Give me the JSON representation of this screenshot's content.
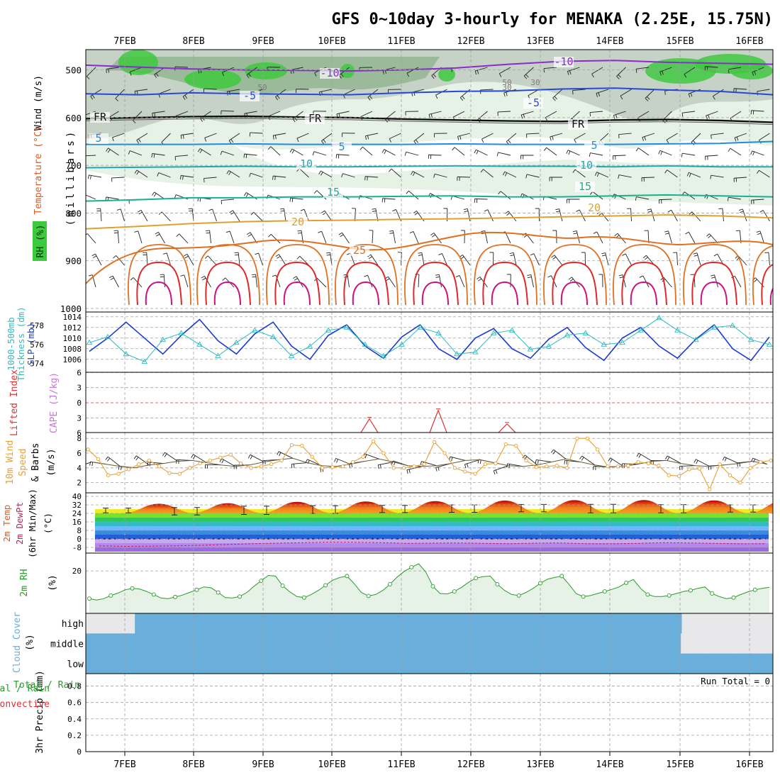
{
  "title": "GFS 0~10day 3-hourly for MENAKA (2.25E, 15.75N)",
  "run_total": "Run Total = 0",
  "dates": [
    "7FEB",
    "8FEB",
    "9FEB",
    "10FEB",
    "11FEB",
    "12FEB",
    "13FEB",
    "14FEB",
    "15FEB",
    "16FEB"
  ],
  "panel_labels": {
    "upper_left": [
      "Wind (m/s)",
      "Temperature (°C)",
      "RH (%)"
    ],
    "upper_right": "(millibars)",
    "pressure": [
      "Thickness (dm)",
      "1000-500mb",
      "SLP (mb)"
    ],
    "stability": [
      "Lifted Index",
      "CAPE (J/kg)"
    ],
    "wind10": [
      "10m Wind",
      "Speed",
      "& Barbs",
      "(m/s)"
    ],
    "temp2m": [
      "2m Temp",
      "2m DewPt",
      "(6hr Min/Max)",
      "(°C)"
    ],
    "rh2m": [
      "2m RH",
      "(%)"
    ],
    "cloud": [
      "Cloud Cover",
      "(%)"
    ],
    "precip": [
      "Total / Rain",
      "Convective",
      "3hr Precip (mm)"
    ]
  },
  "cloud_levels": [
    "high",
    "middle",
    "low"
  ],
  "colors": {
    "grid": "#a0a0a0",
    "rh_green": "#3ec93e",
    "rh_light": "#e6f2e6",
    "rh_gray": "#b8c4b8",
    "slp": "#1a3ccf",
    "thickness": "#2bbcc0",
    "cape": "#c874d8",
    "li": "#e03030",
    "wind10": "#e8a030",
    "rh2m": "#2a9a2a",
    "cloud": "#6aaedb"
  },
  "chart_data": [
    {
      "type": "line",
      "panel": "upper-air cross-section",
      "y_axis": "pressure (millibars)",
      "ylim": [
        1000,
        450
      ],
      "yticks": [
        500,
        600,
        700,
        800,
        900,
        1000
      ],
      "contour_labels": {
        "wind": [
          "-10",
          "-5",
          "FR",
          "5",
          "10",
          "15",
          "20",
          "25"
        ],
        "rh": [
          "50",
          "30"
        ]
      },
      "isotherms": [
        {
          "label": "-10",
          "color": "#8a2bd0",
          "p": [
            490,
            494,
            498,
            500,
            501,
            502,
            500,
            496,
            488,
            482,
            480,
            484,
            486,
            488
          ]
        },
        {
          "label": "-5",
          "color": "#2848d8",
          "p": [
            550,
            552,
            548,
            550,
            551,
            552,
            548,
            545,
            544,
            540,
            538,
            542,
            545,
            552
          ]
        },
        {
          "label": "FR",
          "color": "#101010",
          "p": [
            602,
            600,
            598,
            597,
            599,
            600,
            603,
            605,
            607,
            608,
            605,
            604,
            606,
            610
          ]
        },
        {
          "label": "5",
          "color": "#1e8ce0",
          "p": [
            656,
            656,
            656,
            655,
            656,
            656,
            656,
            655,
            656,
            656,
            656,
            655,
            654,
            650
          ]
        },
        {
          "label": "10",
          "color": "#20a8b0",
          "p": [
            705,
            704,
            703,
            702,
            703,
            703,
            702,
            701,
            702,
            702,
            703,
            701,
            703,
            703
          ]
        },
        {
          "label": "15",
          "color": "#18b090",
          "p": [
            775,
            772,
            768,
            768,
            766,
            766,
            765,
            764,
            766,
            766,
            764,
            762,
            764,
            766
          ]
        },
        {
          "label": "20",
          "color": "#e0a030",
          "p": [
            833,
            828,
            822,
            818,
            816,
            815,
            813,
            812,
            810,
            808,
            806,
            804,
            806,
            810
          ]
        }
      ]
    },
    {
      "type": "line",
      "panel": "SLP and 1000-500mb thickness",
      "series": [
        {
          "name": "SLP (mb)",
          "axis": "right",
          "ylim": [
            1004,
            1014
          ]
        },
        {
          "name": "1000-500mb Thickness (dm)",
          "axis": "left",
          "ylim": [
            573.6,
            579.2
          ]
        }
      ],
      "slp_yticks": [
        1006,
        1008,
        1010,
        1012,
        1014
      ],
      "thick_yticks": [
        574,
        576,
        578
      ],
      "slp_values": [
        1007.5,
        1010,
        1013,
        1010,
        1007,
        1010.5,
        1013.5,
        1009.5,
        1007,
        1010.8,
        1013,
        1008.5,
        1006,
        1010.5,
        1012.5,
        1008.5,
        1006.2,
        1010.2,
        1012.5,
        1008,
        1006,
        1010,
        1011.8,
        1008,
        1006.2,
        1009.8,
        1012,
        1008.2,
        1005.8,
        1010,
        1012,
        1008.5,
        1006.2,
        1009.8,
        1012.5,
        1008,
        1005.8,
        1010.2
      ],
      "thick_values": [
        576.2,
        576.8,
        575,
        574.2,
        576.5,
        577.2,
        576,
        574.8,
        576.2,
        577.5,
        576.8,
        574.8,
        575.8,
        577.5,
        577.8,
        576,
        574.8,
        576,
        577.8,
        577.2,
        575,
        575.2,
        577.2,
        577.5,
        575.5,
        575.8,
        577,
        577.2,
        576,
        576.2,
        577.5,
        578.8,
        577.5,
        576.5,
        577.8,
        578,
        576.5,
        576
      ]
    },
    {
      "type": "line",
      "panel": "Lifted Index and CAPE",
      "series": [
        {
          "name": "CAPE (J/kg)"
        },
        {
          "name": "Lifted Index"
        }
      ],
      "li_yticks": [
        -6,
        -3,
        0,
        3,
        6
      ],
      "cape_peaks_day": [
        4.0,
        5.0,
        6.0
      ],
      "cape_peak_li": [
        3.2,
        1.5,
        4.2
      ]
    },
    {
      "type": "line",
      "panel": "10m wind speed",
      "ylim": [
        1,
        8.6
      ],
      "yticks": [
        2,
        4,
        6,
        8
      ],
      "values": [
        6.5,
        5.2,
        3.0,
        3.2,
        3.8,
        4.5,
        5.0,
        4.2,
        3.3,
        3.2,
        4.0,
        4.6,
        5.0,
        5.4,
        5.8,
        4.6,
        4.0,
        4.2,
        4.5,
        5.0,
        7.1,
        7.0,
        5.5,
        4.0,
        4.1,
        4.2,
        4.8,
        5.5,
        7.6,
        6.0,
        4.0,
        4.0,
        4.2,
        4.5,
        7.5,
        6.0,
        4.0,
        3.5,
        3.2,
        4.5,
        4.6,
        7.2,
        7.0,
        5.0,
        4.1,
        4.2,
        4.3,
        4.0,
        8.0,
        8.0,
        6.5,
        4.2,
        4.2,
        4.3,
        4.8,
        4.6,
        4.3,
        3.0,
        2.9,
        3.8,
        3.9,
        1.1,
        4.5,
        3.0,
        2.0,
        4.0,
        4.8,
        5.0
      ],
      "barb_values": [
        4.8,
        4.5,
        4.2,
        4.0,
        4.4,
        4.6,
        4.9,
        5.0,
        4.7,
        4.4,
        4.2,
        4.4,
        4.8,
        5.1,
        5.3,
        4.7,
        4.3,
        4.2,
        4.5,
        4.9,
        5.2,
        4.8,
        4.3,
        4.2,
        4.3,
        4.6,
        5.0,
        5.1,
        4.7,
        4.3,
        4.2,
        4.4,
        4.8,
        5.2,
        4.8,
        4.4,
        4.1,
        4.2,
        4.5,
        4.9,
        5.0,
        4.6,
        4.3,
        4.2,
        4.4,
        4.6,
        4.9,
        4.5
      ]
    },
    {
      "type": "area",
      "panel": "2m temperature and dewpoint",
      "ylim": [
        -12,
        42
      ],
      "yticks": [
        -8,
        0,
        8,
        16,
        24,
        32,
        40
      ],
      "extra_tick": "40",
      "temp_min": [
        24.5,
        22.5,
        23,
        24,
        24.8,
        25,
        25.5,
        24.5,
        24.5,
        25.2
      ],
      "temp_max": [
        33,
        33.5,
        34.8,
        35.2,
        35.5,
        36,
        36.4,
        36.5,
        36.2,
        36
      ],
      "dewpt": [
        -6.5,
        -7.0,
        -6.8,
        -6.5,
        -6.0,
        -5.2,
        -4.5,
        -4.0,
        -3.5,
        -3.0,
        -3.2,
        -3.5,
        -4.2,
        -4.0,
        -3.8,
        -4.2,
        -4.5,
        -4.0,
        -3.8,
        -4.5,
        -4.6,
        -4.2,
        -3.5,
        -3.8,
        -4.2,
        -4.6,
        -4.5
      ]
    },
    {
      "type": "area",
      "panel": "2m RH",
      "ylim": [
        0,
        28
      ],
      "yticks": [
        20
      ],
      "values": [
        6.5,
        5.8,
        6.5,
        8.0,
        9.2,
        10.8,
        11.5,
        11.2,
        10.0,
        8.5,
        6.8,
        6.5,
        7.3,
        8.2,
        9.5,
        10.8,
        12.2,
        11.8,
        9.5,
        7.0,
        6.8,
        7.5,
        9.5,
        12.5,
        15.2,
        17.8,
        17.5,
        12.8,
        9.8,
        7.5,
        7.0,
        8.5,
        10.5,
        13.0,
        15.5,
        16.8,
        17.5,
        13.8,
        9.5,
        7.8,
        8.5,
        10.5,
        13.5,
        17.0,
        19.8,
        21.8,
        23.5,
        19.5,
        12.5,
        9.0,
        8.8,
        10.0,
        12.0,
        14.5,
        16.5,
        17.2,
        17.5,
        13.5,
        10.5,
        8.5,
        8.0,
        9.5,
        11.5,
        14.0,
        16.0,
        16.8,
        17.5,
        13.5,
        9.0,
        7.5,
        8.0,
        9.0,
        10.0,
        11.0,
        12.2,
        14.2,
        15.8,
        11.5,
        8.5,
        7.5,
        7.5,
        8.0,
        9.0,
        10.0,
        10.5,
        11.5,
        12.2,
        9.0,
        7.5,
        6.5,
        7.0,
        8.5,
        9.8,
        10.8,
        11.5,
        12.0
      ]
    },
    {
      "type": "heatmap",
      "panel": "cloud cover",
      "rows": [
        "high",
        "middle",
        "low"
      ],
      "high": [
        0,
        0,
        0,
        0,
        0,
        0,
        0,
        1,
        1,
        1,
        1,
        1,
        1,
        1,
        1,
        1,
        1,
        1,
        1,
        1,
        1,
        1,
        1,
        1,
        1,
        1,
        1,
        1,
        1,
        1,
        1,
        1,
        1,
        1,
        1,
        1,
        1,
        1,
        1,
        1,
        1,
        1,
        1,
        1,
        1,
        1,
        1,
        1,
        1,
        1,
        1,
        1,
        1,
        1,
        1,
        1,
        1,
        1,
        1,
        1,
        1,
        1,
        1,
        1,
        1,
        1,
        1,
        1,
        1,
        1,
        1,
        1,
        1,
        1,
        1,
        1,
        1,
        1,
        1,
        1,
        1,
        1,
        1,
        1,
        1,
        0,
        0,
        0,
        0,
        0,
        0,
        0,
        0,
        0,
        0,
        0,
        0,
        0
      ],
      "middle": [
        1,
        1,
        1,
        1,
        1,
        1,
        1,
        1,
        1,
        1,
        1,
        1,
        1,
        1,
        1,
        1,
        1,
        1,
        1,
        1,
        1,
        1,
        1,
        1,
        1,
        1,
        1,
        1,
        1,
        1,
        1,
        1,
        1,
        1,
        1,
        1,
        1,
        1,
        1,
        1,
        1,
        1,
        1,
        1,
        1,
        1,
        1,
        1,
        1,
        1,
        1,
        1,
        1,
        1,
        1,
        1,
        1,
        1,
        1,
        1,
        1,
        1,
        1,
        1,
        1,
        1,
        1,
        1,
        1,
        1,
        1,
        1,
        1,
        1,
        1,
        1,
        1,
        1,
        1,
        1,
        1,
        1,
        1,
        1,
        0,
        0,
        0,
        0,
        0,
        0,
        0,
        0,
        0,
        0,
        0,
        0,
        0
      ],
      "low": [
        1,
        1,
        1,
        1,
        1,
        1,
        1,
        1,
        1,
        1,
        1,
        1,
        1,
        1,
        1,
        1,
        1,
        1,
        1,
        1,
        1,
        1,
        1,
        1,
        1,
        1,
        1,
        1,
        1,
        1,
        1,
        1,
        1,
        1,
        1,
        1,
        1,
        1,
        1,
        1,
        1,
        1,
        1,
        1,
        1,
        1,
        1,
        1,
        1,
        1,
        1,
        1,
        1,
        1,
        1,
        1,
        1,
        1,
        1,
        1,
        1,
        1,
        1,
        1,
        1,
        1,
        1,
        1,
        1,
        1,
        1,
        1,
        1,
        1,
        1,
        1,
        1,
        1,
        1,
        1,
        1,
        1,
        1,
        1,
        1,
        1,
        1,
        1,
        1,
        1,
        1,
        1,
        1,
        1,
        1,
        1,
        1
      ]
    },
    {
      "type": "bar",
      "panel": "3hr precipitation",
      "ylim": [
        0,
        0.9
      ],
      "yticks": [
        "0",
        "0.2",
        "0.4",
        "0.6",
        "0.8"
      ],
      "values": [
        0,
        0,
        0,
        0,
        0,
        0,
        0,
        0,
        0,
        0
      ]
    }
  ]
}
